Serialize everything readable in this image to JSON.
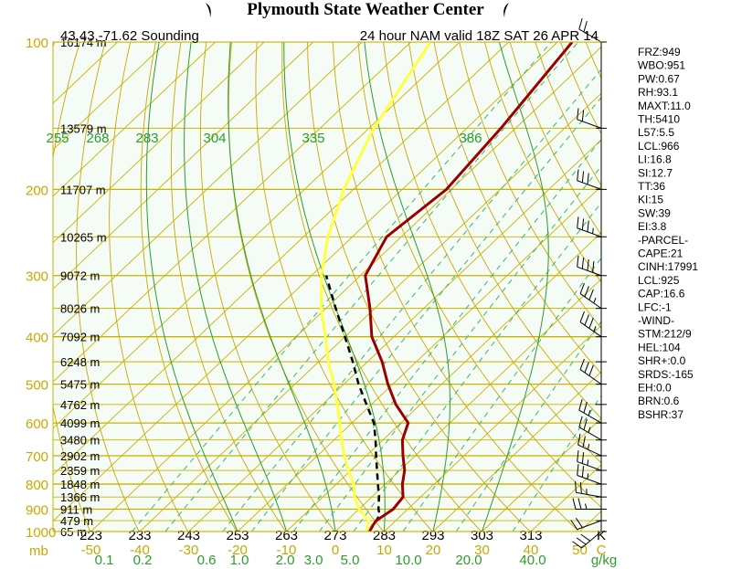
{
  "banner": {
    "title": "Plymouth State Weather Center"
  },
  "header": {
    "location": "43.43,-71.62 Sounding",
    "model": "24 hour NAM valid 18Z SAT 26 APR 14"
  },
  "colors": {
    "background": "#f5fbf5",
    "grid": "#c8b400",
    "pressure_label": "#c8a800",
    "dry_adiabat": "#c8a800",
    "moist_adiabat": "#2e9b2e",
    "mixing_ratio": "#3cb371",
    "temperature": "#990000",
    "dewpoint": "#ffff44",
    "parcel": "#000000",
    "wind": "#000000"
  },
  "indices": [
    "FRZ:949",
    "WBO:951",
    "PW:0.67",
    "RH:93.1",
    "MAXT:11.0",
    "TH:5410",
    "L57:5.5",
    "LCL:966",
    "LI:16.8",
    "SI:12.7",
    "TT:36",
    "KI:15",
    "SW:39",
    "EI:3.8",
    "-PARCEL-",
    "CAPE:21",
    "CINH:17991",
    "LCL:925",
    "CAP:16.6",
    "LFC:-1",
    "-WIND-",
    "STM:212/9",
    "HEL:104",
    "SHR+:0.0",
    "SRDS:-165",
    "EH:0.0",
    "BRN:0.6",
    "BSHR:37"
  ],
  "chart_data": {
    "type": "skew-t",
    "pressure_levels": [
      100,
      200,
      300,
      400,
      500,
      600,
      700,
      800,
      900,
      1000
    ],
    "pressure_unit": "mb",
    "heights": [
      {
        "p": 100,
        "label": "16174 m"
      },
      {
        "p": 150,
        "label": "13579 m"
      },
      {
        "p": 200,
        "label": "11707 m"
      },
      {
        "p": 250,
        "label": "10265 m"
      },
      {
        "p": 300,
        "label": "9072 m"
      },
      {
        "p": 350,
        "label": "8026 m"
      },
      {
        "p": 400,
        "label": "7092 m"
      },
      {
        "p": 450,
        "label": "6248 m"
      },
      {
        "p": 500,
        "label": "5475 m"
      },
      {
        "p": 550,
        "label": "4762 m"
      },
      {
        "p": 600,
        "label": "4099 m"
      },
      {
        "p": 650,
        "label": "3480 m"
      },
      {
        "p": 700,
        "label": "2902 m"
      },
      {
        "p": 750,
        "label": "2359 m"
      },
      {
        "p": 800,
        "label": "1848 m"
      },
      {
        "p": 850,
        "label": "1366 m"
      },
      {
        "p": 900,
        "label": "911 m"
      },
      {
        "p": 950,
        "label": "479 m"
      },
      {
        "p": 1000,
        "label": "65 m"
      }
    ],
    "temperature_ticks": [
      "-50",
      "-40",
      "-30",
      "-20",
      "-10",
      "0",
      "10",
      "20",
      "30",
      "40",
      "50",
      "C"
    ],
    "theta_labels": [
      "223",
      "233",
      "243",
      "253",
      "263",
      "273",
      "283",
      "293",
      "303",
      "313",
      "K"
    ],
    "moist_labels": [
      "255",
      "268",
      "283",
      "304",
      "335",
      "386"
    ],
    "mixing_ratio_labels": [
      "0.1",
      "0.2",
      "0.6",
      "1.0",
      "2.0",
      "3.0",
      "5.0",
      "10.0",
      "20.0",
      "40.0",
      "g/kg"
    ],
    "temperature": [
      [
        1000,
        7
      ],
      [
        975,
        6.4
      ],
      [
        950,
        6
      ],
      [
        925,
        6.5
      ],
      [
        900,
        7
      ],
      [
        850,
        6.4
      ],
      [
        800,
        3.5
      ],
      [
        750,
        1
      ],
      [
        700,
        -2.5
      ],
      [
        650,
        -6
      ],
      [
        600,
        -8.5
      ],
      [
        550,
        -15
      ],
      [
        500,
        -21
      ],
      [
        450,
        -27
      ],
      [
        400,
        -34.5
      ],
      [
        350,
        -41
      ],
      [
        300,
        -49
      ],
      [
        250,
        -53
      ],
      [
        200,
        -51
      ],
      [
        150,
        -53
      ],
      [
        100,
        -57
      ]
    ],
    "dewpoint": [
      [
        1000,
        6.5
      ],
      [
        950,
        4.5
      ],
      [
        900,
        0
      ],
      [
        850,
        -3.5
      ],
      [
        800,
        -6.5
      ],
      [
        750,
        -10.5
      ],
      [
        700,
        -14.5
      ],
      [
        650,
        -18.5
      ],
      [
        600,
        -22.5
      ],
      [
        550,
        -27
      ],
      [
        500,
        -32
      ],
      [
        450,
        -38
      ],
      [
        400,
        -44
      ],
      [
        350,
        -51
      ],
      [
        300,
        -58
      ],
      [
        250,
        -65
      ],
      [
        200,
        -72
      ],
      [
        150,
        -79
      ],
      [
        100,
        -86
      ]
    ],
    "parcel": [
      [
        1000,
        7
      ],
      [
        950,
        6
      ],
      [
        925,
        5.5
      ],
      [
        900,
        4
      ],
      [
        850,
        1.5
      ],
      [
        800,
        -1.5
      ],
      [
        700,
        -8
      ],
      [
        650,
        -11.5
      ],
      [
        600,
        -15.5
      ],
      [
        550,
        -21
      ],
      [
        500,
        -27
      ],
      [
        450,
        -33
      ],
      [
        400,
        -40
      ],
      [
        350,
        -48
      ],
      [
        300,
        -57
      ]
    ],
    "wind": [
      {
        "p": 1000,
        "dir": 230,
        "spd": 30
      },
      {
        "p": 950,
        "dir": 250,
        "spd": 20
      },
      {
        "p": 900,
        "dir": 270,
        "spd": 25
      },
      {
        "p": 850,
        "dir": 280,
        "spd": 25
      },
      {
        "p": 800,
        "dir": 290,
        "spd": 25
      },
      {
        "p": 750,
        "dir": 290,
        "spd": 25
      },
      {
        "p": 700,
        "dir": 295,
        "spd": 25
      },
      {
        "p": 650,
        "dir": 300,
        "spd": 25
      },
      {
        "p": 600,
        "dir": 300,
        "spd": 25
      },
      {
        "p": 500,
        "dir": 305,
        "spd": 30
      },
      {
        "p": 400,
        "dir": 305,
        "spd": 35
      },
      {
        "p": 350,
        "dir": 305,
        "spd": 35
      },
      {
        "p": 300,
        "dir": 290,
        "spd": 40
      },
      {
        "p": 250,
        "dir": 290,
        "spd": 35
      },
      {
        "p": 200,
        "dir": 290,
        "spd": 30
      },
      {
        "p": 150,
        "dir": 290,
        "spd": 20
      },
      {
        "p": 100,
        "dir": 300,
        "spd": 20
      }
    ]
  }
}
